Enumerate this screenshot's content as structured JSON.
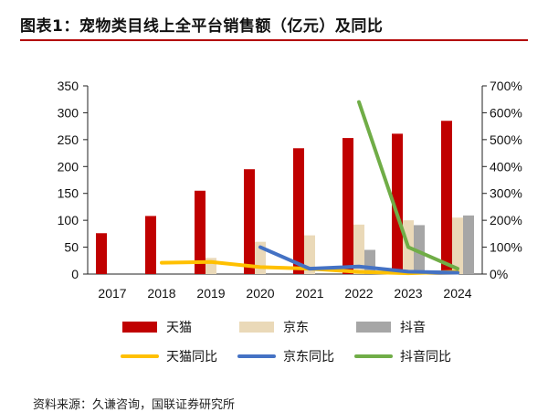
{
  "title": "图表1：宠物类目线上全平台销售额（亿元）及同比",
  "source": "资料来源：久谦咨询，国联证券研究所",
  "colors": {
    "tmall": "#c00000",
    "jd": "#ead9b8",
    "douyin": "#a6a6a6",
    "tmall_yoy": "#ffc000",
    "jd_yoy": "#4472c4",
    "douyin_yoy": "#70ad47"
  },
  "chart_data": {
    "type": "bar",
    "categories": [
      "2017",
      "2018",
      "2019",
      "2020",
      "2021",
      "2022",
      "2023",
      "2024"
    ],
    "y_left_ticks": [
      "0",
      "50",
      "100",
      "150",
      "200",
      "250",
      "300",
      "350"
    ],
    "y_right_ticks": [
      "0%",
      "100%",
      "200%",
      "300%",
      "400%",
      "500%",
      "600%",
      "700%"
    ],
    "ylim_left": [
      0,
      350
    ],
    "ylim_right": [
      0,
      700
    ],
    "legend_position": "bottom",
    "series": [
      {
        "name": "天猫",
        "type": "bar",
        "axis": "left",
        "values": [
          76,
          108,
          155,
          195,
          234,
          253,
          261,
          285
        ]
      },
      {
        "name": "京东",
        "type": "bar",
        "axis": "left",
        "values": [
          null,
          null,
          30,
          60,
          72,
          92,
          100,
          105
        ]
      },
      {
        "name": "抖音",
        "type": "bar",
        "axis": "left",
        "values": [
          null,
          null,
          null,
          null,
          null,
          45,
          91,
          109
        ]
      },
      {
        "name": "天猫同比",
        "type": "line",
        "axis": "right",
        "values": [
          null,
          42,
          45,
          26,
          20,
          8,
          3,
          9
        ]
      },
      {
        "name": "京东同比",
        "type": "line",
        "axis": "right",
        "values": [
          null,
          null,
          null,
          100,
          20,
          28,
          9,
          5
        ]
      },
      {
        "name": "抖音同比",
        "type": "line",
        "axis": "right",
        "values": [
          null,
          null,
          null,
          null,
          null,
          640,
          100,
          20
        ]
      }
    ]
  }
}
